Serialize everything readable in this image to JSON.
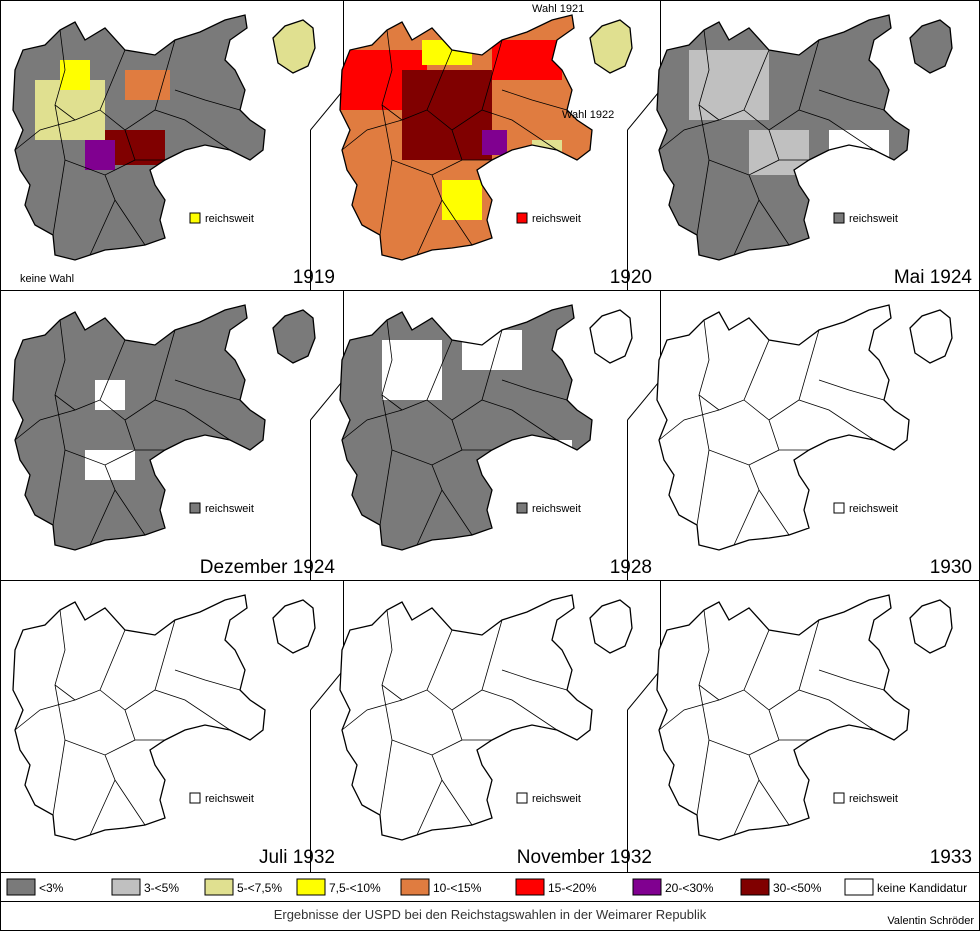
{
  "title": "Ergebnisse der USPD bei den Reichstagswahlen in der Weimarer Republik",
  "author": "Valentin Schröder",
  "colors": {
    "lt3": "#7a7a7a",
    "3to5": "#c0c0c0",
    "5to7_5": "#e0e090",
    "7_5to10": "#ffff00",
    "10to15": "#e07c40",
    "15to20": "#ff0000",
    "20to30": "#800090",
    "30to50": "#800000",
    "none": "#ffffff"
  },
  "legend": [
    {
      "key": "lt3",
      "label": "<3%"
    },
    {
      "key": "3to5",
      "label": "3-<5%"
    },
    {
      "key": "5to7_5",
      "label": "5-<7,5%"
    },
    {
      "key": "7_5to10",
      "label": "7,5-<10%"
    },
    {
      "key": "10to15",
      "label": "10-<15%"
    },
    {
      "key": "15to20",
      "label": "15-<20%"
    },
    {
      "key": "20to30",
      "label": "20-<30%"
    },
    {
      "key": "30to50",
      "label": "30-<50%"
    },
    {
      "key": "none",
      "label": "keine Kandidatur"
    }
  ],
  "panels": [
    {
      "year": "1919",
      "nationwide_label": "reichsweit",
      "nationwide": "7_5to10",
      "note": "keine Wahl"
    },
    {
      "year": "1920",
      "nationwide_label": "reichsweit",
      "nationwide": "15to20",
      "note1": "Wahl 1921",
      "note2": "Wahl 1922"
    },
    {
      "year": "Mai 1924",
      "nationwide_label": "reichsweit",
      "nationwide": "lt3"
    },
    {
      "year": "Dezember 1924",
      "nationwide_label": "reichsweit",
      "nationwide": "lt3"
    },
    {
      "year": "1928",
      "nationwide_label": "reichsweit",
      "nationwide": "lt3"
    },
    {
      "year": "1930",
      "nationwide_label": "reichsweit",
      "nationwide": "none"
    },
    {
      "year": "Juli 1932",
      "nationwide_label": "reichsweit",
      "nationwide": "none"
    },
    {
      "year": "November 1932",
      "nationwide_label": "reichsweit",
      "nationwide": "none"
    },
    {
      "year": "1933",
      "nationwide_label": "reichsweit",
      "nationwide": "none"
    }
  ]
}
